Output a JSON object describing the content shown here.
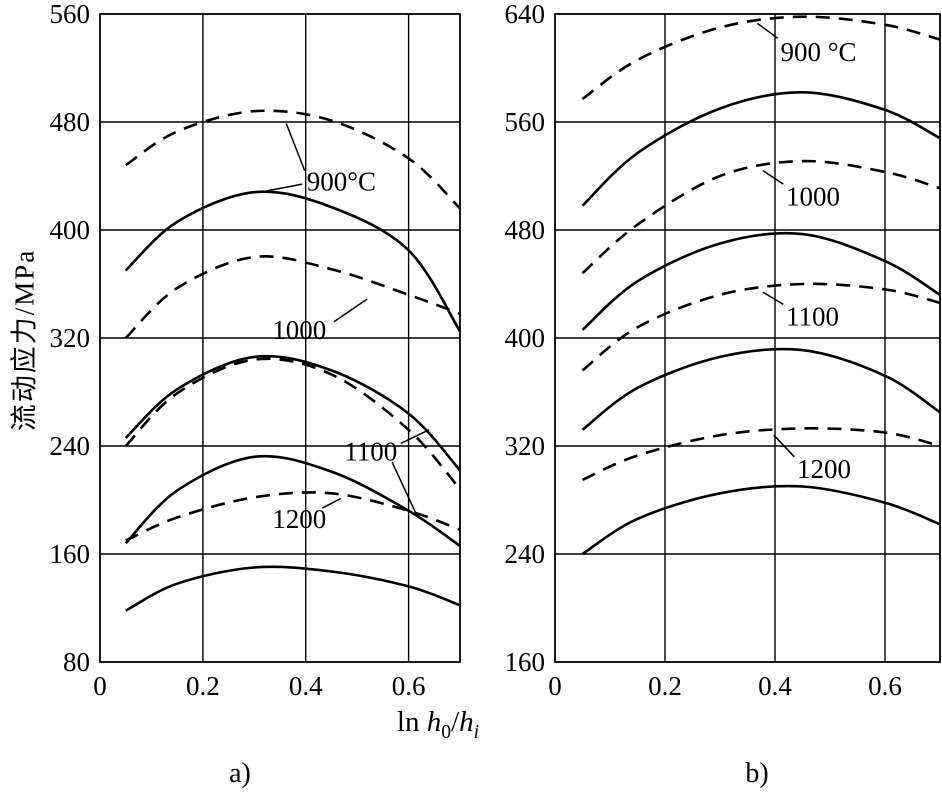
{
  "figure": {
    "bg": "#ffffff",
    "line_color": "#000000",
    "xlabel_plain": "ln h0/hi",
    "xlabel_parts": [
      {
        "text": "ln ",
        "italic": false,
        "sub": false
      },
      {
        "text": "h",
        "italic": true,
        "sub": false
      },
      {
        "text": "0",
        "italic": false,
        "sub": true
      },
      {
        "text": "/",
        "italic": false,
        "sub": false
      },
      {
        "text": "h",
        "italic": true,
        "sub": false
      },
      {
        "text": "i",
        "italic": true,
        "sub": true
      }
    ]
  },
  "chart_data": [
    {
      "id": "a",
      "type": "line",
      "subplot_label": "a)",
      "ylabel": "流动应力/MPa",
      "xlim": [
        0,
        0.7
      ],
      "ylim": [
        80,
        560
      ],
      "xticks": [
        0,
        0.2,
        0.4,
        0.6
      ],
      "yticks": [
        80,
        160,
        240,
        320,
        400,
        480,
        560
      ],
      "grid": true,
      "series": [
        {
          "name": "900C-dashed",
          "temperature": "900",
          "style": "dashed",
          "x": [
            0.05,
            0.15,
            0.3,
            0.45,
            0.6,
            0.7
          ],
          "y": [
            448,
            473,
            488,
            481,
            453,
            416
          ]
        },
        {
          "name": "900C-solid",
          "temperature": "900",
          "style": "solid",
          "x": [
            0.05,
            0.15,
            0.3,
            0.45,
            0.6,
            0.7
          ],
          "y": [
            370,
            406,
            428,
            417,
            385,
            325
          ]
        },
        {
          "name": "1000C-dashed",
          "temperature": "1000",
          "style": "dashed",
          "x": [
            0.05,
            0.15,
            0.3,
            0.45,
            0.6,
            0.7
          ],
          "y": [
            320,
            357,
            380,
            371,
            352,
            338
          ]
        },
        {
          "name": "1000C-solid",
          "temperature": "1000",
          "style": "solid",
          "x": [
            0.05,
            0.15,
            0.3,
            0.45,
            0.6,
            0.7
          ],
          "y": [
            246,
            282,
            306,
            296,
            264,
            222
          ]
        },
        {
          "name": "1100C-dashed",
          "temperature": "1100",
          "style": "dashed",
          "x": [
            0.05,
            0.15,
            0.3,
            0.45,
            0.6,
            0.7
          ],
          "y": [
            240,
            279,
            304,
            293,
            252,
            208
          ]
        },
        {
          "name": "1100C-solid",
          "temperature": "1100",
          "style": "solid",
          "x": [
            0.05,
            0.15,
            0.3,
            0.45,
            0.6,
            0.7
          ],
          "y": [
            168,
            207,
            232,
            221,
            192,
            166
          ]
        },
        {
          "name": "1200C-dashed",
          "temperature": "1200",
          "style": "dashed",
          "x": [
            0.05,
            0.15,
            0.3,
            0.45,
            0.6,
            0.7
          ],
          "y": [
            170,
            187,
            202,
            205,
            192,
            178
          ]
        },
        {
          "name": "1200C-solid",
          "temperature": "1200",
          "style": "solid",
          "x": [
            0.05,
            0.15,
            0.3,
            0.45,
            0.6,
            0.7
          ],
          "y": [
            118,
            138,
            150,
            147,
            136,
            122
          ]
        }
      ],
      "annotations": [
        {
          "text": "900°C",
          "x": 0.402,
          "y": 436,
          "leaders": [
            [
              0.398,
              444,
              0.362,
              479
            ],
            [
              0.393,
              434,
              0.325,
              429
            ]
          ]
        },
        {
          "text": "1000",
          "x": 0.335,
          "y": 326,
          "leaders": [
            [
              0.455,
              332,
              0.52,
              349
            ]
          ]
        },
        {
          "text": "1100",
          "x": 0.475,
          "y": 236,
          "leaders": [
            [
              0.585,
              242,
              0.64,
              252
            ],
            [
              0.568,
              228,
              0.613,
              191
            ]
          ]
        },
        {
          "text": "1200",
          "x": 0.335,
          "y": 186,
          "leaders": [
            [
              0.432,
              194,
              0.468,
              201
            ]
          ]
        }
      ]
    },
    {
      "id": "b",
      "type": "line",
      "subplot_label": "b)",
      "ylabel": "",
      "xlim": [
        0,
        0.7
      ],
      "ylim": [
        160,
        640
      ],
      "xticks": [
        0,
        0.2,
        0.4,
        0.6
      ],
      "yticks": [
        160,
        240,
        320,
        400,
        480,
        560,
        640
      ],
      "grid": true,
      "series": [
        {
          "name": "900C-dashed",
          "temperature": "900",
          "style": "dashed",
          "x": [
            0.05,
            0.15,
            0.3,
            0.45,
            0.6,
            0.7
          ],
          "y": [
            577,
            606,
            630,
            638,
            632,
            621
          ]
        },
        {
          "name": "900C-solid",
          "temperature": "900",
          "style": "solid",
          "x": [
            0.05,
            0.15,
            0.3,
            0.45,
            0.6,
            0.7
          ],
          "y": [
            498,
            537,
            570,
            582,
            569,
            548
          ]
        },
        {
          "name": "1000C-dashed",
          "temperature": "1000",
          "style": "dashed",
          "x": [
            0.05,
            0.15,
            0.3,
            0.45,
            0.6,
            0.7
          ],
          "y": [
            448,
            484,
            520,
            531,
            523,
            511
          ]
        },
        {
          "name": "1000C-solid",
          "temperature": "1000",
          "style": "solid",
          "x": [
            0.05,
            0.15,
            0.3,
            0.45,
            0.6,
            0.7
          ],
          "y": [
            406,
            442,
            470,
            477,
            457,
            432
          ]
        },
        {
          "name": "1100C-dashed",
          "temperature": "1100",
          "style": "dashed",
          "x": [
            0.05,
            0.15,
            0.3,
            0.45,
            0.6,
            0.7
          ],
          "y": [
            376,
            408,
            432,
            440,
            436,
            426
          ]
        },
        {
          "name": "1100C-solid",
          "temperature": "1100",
          "style": "solid",
          "x": [
            0.05,
            0.15,
            0.3,
            0.45,
            0.6,
            0.7
          ],
          "y": [
            332,
            363,
            386,
            391,
            372,
            345
          ]
        },
        {
          "name": "1200C-dashed",
          "temperature": "1200",
          "style": "dashed",
          "x": [
            0.05,
            0.15,
            0.3,
            0.45,
            0.6,
            0.7
          ],
          "y": [
            295,
            313,
            328,
            333,
            330,
            320
          ]
        },
        {
          "name": "1200C-solid",
          "temperature": "1200",
          "style": "solid",
          "x": [
            0.05,
            0.15,
            0.3,
            0.45,
            0.6,
            0.7
          ],
          "y": [
            240,
            266,
            285,
            290,
            278,
            262
          ]
        }
      ],
      "annotations": [
        {
          "text": "900 °C",
          "x": 0.41,
          "y": 612,
          "leaders": [
            [
              0.405,
              622,
              0.368,
              633
            ]
          ]
        },
        {
          "text": "1000",
          "x": 0.42,
          "y": 505,
          "leaders": [
            [
              0.415,
              514,
              0.378,
              524
            ]
          ]
        },
        {
          "text": "1100",
          "x": 0.42,
          "y": 416,
          "leaders": [
            [
              0.415,
              425,
              0.378,
              434
            ]
          ]
        },
        {
          "text": "1200",
          "x": 0.44,
          "y": 303,
          "leaders": [
            [
              0.435,
              312,
              0.398,
              328
            ]
          ]
        }
      ]
    }
  ]
}
